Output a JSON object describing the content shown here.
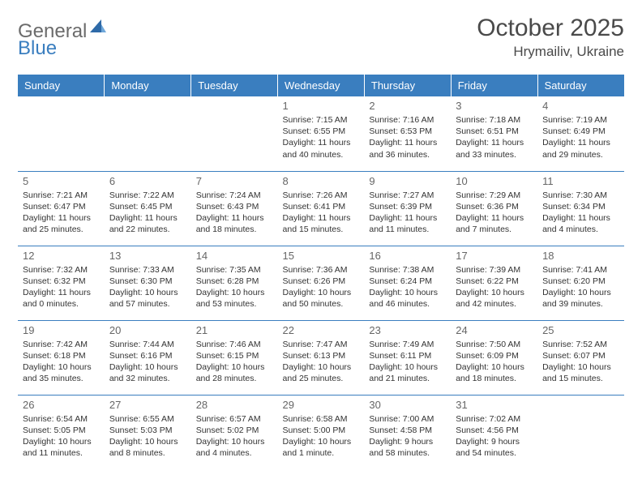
{
  "logo": {
    "text1": "General",
    "text2": "Blue"
  },
  "title": "October 2025",
  "location": "Hrymailiv, Ukraine",
  "colors": {
    "header_bg": "#3a7ebf",
    "header_text": "#ffffff",
    "border": "#3a7ebf",
    "logo_gray": "#6b6b6b",
    "logo_blue": "#3a7ebf",
    "text": "#333333",
    "daynum": "#666666"
  },
  "weekdays": [
    "Sunday",
    "Monday",
    "Tuesday",
    "Wednesday",
    "Thursday",
    "Friday",
    "Saturday"
  ],
  "weeks": [
    [
      {
        "n": "",
        "sunrise": "",
        "sunset": "",
        "dayl": ""
      },
      {
        "n": "",
        "sunrise": "",
        "sunset": "",
        "dayl": ""
      },
      {
        "n": "",
        "sunrise": "",
        "sunset": "",
        "dayl": ""
      },
      {
        "n": "1",
        "sunrise": "Sunrise: 7:15 AM",
        "sunset": "Sunset: 6:55 PM",
        "dayl": "Daylight: 11 hours and 40 minutes."
      },
      {
        "n": "2",
        "sunrise": "Sunrise: 7:16 AM",
        "sunset": "Sunset: 6:53 PM",
        "dayl": "Daylight: 11 hours and 36 minutes."
      },
      {
        "n": "3",
        "sunrise": "Sunrise: 7:18 AM",
        "sunset": "Sunset: 6:51 PM",
        "dayl": "Daylight: 11 hours and 33 minutes."
      },
      {
        "n": "4",
        "sunrise": "Sunrise: 7:19 AM",
        "sunset": "Sunset: 6:49 PM",
        "dayl": "Daylight: 11 hours and 29 minutes."
      }
    ],
    [
      {
        "n": "5",
        "sunrise": "Sunrise: 7:21 AM",
        "sunset": "Sunset: 6:47 PM",
        "dayl": "Daylight: 11 hours and 25 minutes."
      },
      {
        "n": "6",
        "sunrise": "Sunrise: 7:22 AM",
        "sunset": "Sunset: 6:45 PM",
        "dayl": "Daylight: 11 hours and 22 minutes."
      },
      {
        "n": "7",
        "sunrise": "Sunrise: 7:24 AM",
        "sunset": "Sunset: 6:43 PM",
        "dayl": "Daylight: 11 hours and 18 minutes."
      },
      {
        "n": "8",
        "sunrise": "Sunrise: 7:26 AM",
        "sunset": "Sunset: 6:41 PM",
        "dayl": "Daylight: 11 hours and 15 minutes."
      },
      {
        "n": "9",
        "sunrise": "Sunrise: 7:27 AM",
        "sunset": "Sunset: 6:39 PM",
        "dayl": "Daylight: 11 hours and 11 minutes."
      },
      {
        "n": "10",
        "sunrise": "Sunrise: 7:29 AM",
        "sunset": "Sunset: 6:36 PM",
        "dayl": "Daylight: 11 hours and 7 minutes."
      },
      {
        "n": "11",
        "sunrise": "Sunrise: 7:30 AM",
        "sunset": "Sunset: 6:34 PM",
        "dayl": "Daylight: 11 hours and 4 minutes."
      }
    ],
    [
      {
        "n": "12",
        "sunrise": "Sunrise: 7:32 AM",
        "sunset": "Sunset: 6:32 PM",
        "dayl": "Daylight: 11 hours and 0 minutes."
      },
      {
        "n": "13",
        "sunrise": "Sunrise: 7:33 AM",
        "sunset": "Sunset: 6:30 PM",
        "dayl": "Daylight: 10 hours and 57 minutes."
      },
      {
        "n": "14",
        "sunrise": "Sunrise: 7:35 AM",
        "sunset": "Sunset: 6:28 PM",
        "dayl": "Daylight: 10 hours and 53 minutes."
      },
      {
        "n": "15",
        "sunrise": "Sunrise: 7:36 AM",
        "sunset": "Sunset: 6:26 PM",
        "dayl": "Daylight: 10 hours and 50 minutes."
      },
      {
        "n": "16",
        "sunrise": "Sunrise: 7:38 AM",
        "sunset": "Sunset: 6:24 PM",
        "dayl": "Daylight: 10 hours and 46 minutes."
      },
      {
        "n": "17",
        "sunrise": "Sunrise: 7:39 AM",
        "sunset": "Sunset: 6:22 PM",
        "dayl": "Daylight: 10 hours and 42 minutes."
      },
      {
        "n": "18",
        "sunrise": "Sunrise: 7:41 AM",
        "sunset": "Sunset: 6:20 PM",
        "dayl": "Daylight: 10 hours and 39 minutes."
      }
    ],
    [
      {
        "n": "19",
        "sunrise": "Sunrise: 7:42 AM",
        "sunset": "Sunset: 6:18 PM",
        "dayl": "Daylight: 10 hours and 35 minutes."
      },
      {
        "n": "20",
        "sunrise": "Sunrise: 7:44 AM",
        "sunset": "Sunset: 6:16 PM",
        "dayl": "Daylight: 10 hours and 32 minutes."
      },
      {
        "n": "21",
        "sunrise": "Sunrise: 7:46 AM",
        "sunset": "Sunset: 6:15 PM",
        "dayl": "Daylight: 10 hours and 28 minutes."
      },
      {
        "n": "22",
        "sunrise": "Sunrise: 7:47 AM",
        "sunset": "Sunset: 6:13 PM",
        "dayl": "Daylight: 10 hours and 25 minutes."
      },
      {
        "n": "23",
        "sunrise": "Sunrise: 7:49 AM",
        "sunset": "Sunset: 6:11 PM",
        "dayl": "Daylight: 10 hours and 21 minutes."
      },
      {
        "n": "24",
        "sunrise": "Sunrise: 7:50 AM",
        "sunset": "Sunset: 6:09 PM",
        "dayl": "Daylight: 10 hours and 18 minutes."
      },
      {
        "n": "25",
        "sunrise": "Sunrise: 7:52 AM",
        "sunset": "Sunset: 6:07 PM",
        "dayl": "Daylight: 10 hours and 15 minutes."
      }
    ],
    [
      {
        "n": "26",
        "sunrise": "Sunrise: 6:54 AM",
        "sunset": "Sunset: 5:05 PM",
        "dayl": "Daylight: 10 hours and 11 minutes."
      },
      {
        "n": "27",
        "sunrise": "Sunrise: 6:55 AM",
        "sunset": "Sunset: 5:03 PM",
        "dayl": "Daylight: 10 hours and 8 minutes."
      },
      {
        "n": "28",
        "sunrise": "Sunrise: 6:57 AM",
        "sunset": "Sunset: 5:02 PM",
        "dayl": "Daylight: 10 hours and 4 minutes."
      },
      {
        "n": "29",
        "sunrise": "Sunrise: 6:58 AM",
        "sunset": "Sunset: 5:00 PM",
        "dayl": "Daylight: 10 hours and 1 minute."
      },
      {
        "n": "30",
        "sunrise": "Sunrise: 7:00 AM",
        "sunset": "Sunset: 4:58 PM",
        "dayl": "Daylight: 9 hours and 58 minutes."
      },
      {
        "n": "31",
        "sunrise": "Sunrise: 7:02 AM",
        "sunset": "Sunset: 4:56 PM",
        "dayl": "Daylight: 9 hours and 54 minutes."
      },
      {
        "n": "",
        "sunrise": "",
        "sunset": "",
        "dayl": ""
      }
    ]
  ]
}
